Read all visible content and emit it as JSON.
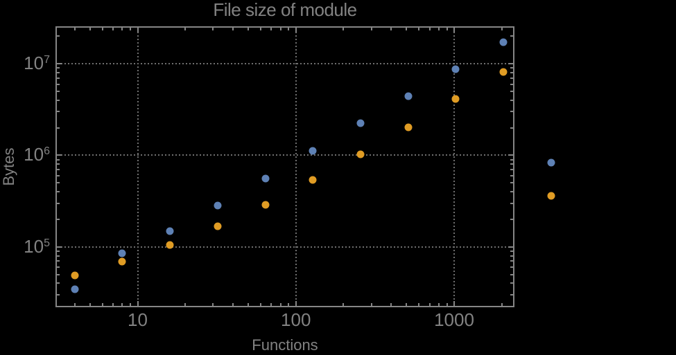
{
  "chart_data": {
    "type": "scatter",
    "title": "File size of module",
    "xlabel": "Functions",
    "ylabel": "Bytes",
    "x_scale": "log",
    "y_scale": "log",
    "grid": "dotted",
    "legend": "none",
    "x": [
      4,
      8,
      16,
      32,
      64,
      128,
      256,
      512,
      1024,
      2048,
      4096
    ],
    "series": [
      {
        "name": "series-blue",
        "color": "#5e81b5",
        "values": [
          34400,
          85100,
          149000,
          283000,
          558000,
          1120000,
          2250000,
          4400000,
          8810000,
          17200000,
          834000
        ]
      },
      {
        "name": "series-orange",
        "color": "#e09c24",
        "values": [
          48800,
          69000,
          104000,
          169000,
          288000,
          539000,
          1020000,
          2040000,
          4130000,
          8150000,
          361000
        ]
      }
    ],
    "x_ticks": [
      {
        "value": 10,
        "label": "10"
      },
      {
        "value": 100,
        "label": "100"
      },
      {
        "value": 1000,
        "label": "1000"
      }
    ],
    "y_ticks": [
      {
        "value": 100000,
        "base": "10",
        "exp": "5"
      },
      {
        "value": 1000000,
        "base": "10",
        "exp": "6"
      },
      {
        "value": 10000000,
        "base": "10",
        "exp": "7"
      }
    ],
    "x_range_log": [
      0.4852,
      3.3768
    ],
    "y_range_log": [
      4.3478,
      7.4026
    ]
  },
  "style": {
    "background": "#000000",
    "text_color": "#828282",
    "frame_color": "#868686",
    "grid_color": "#6f6f6f"
  }
}
